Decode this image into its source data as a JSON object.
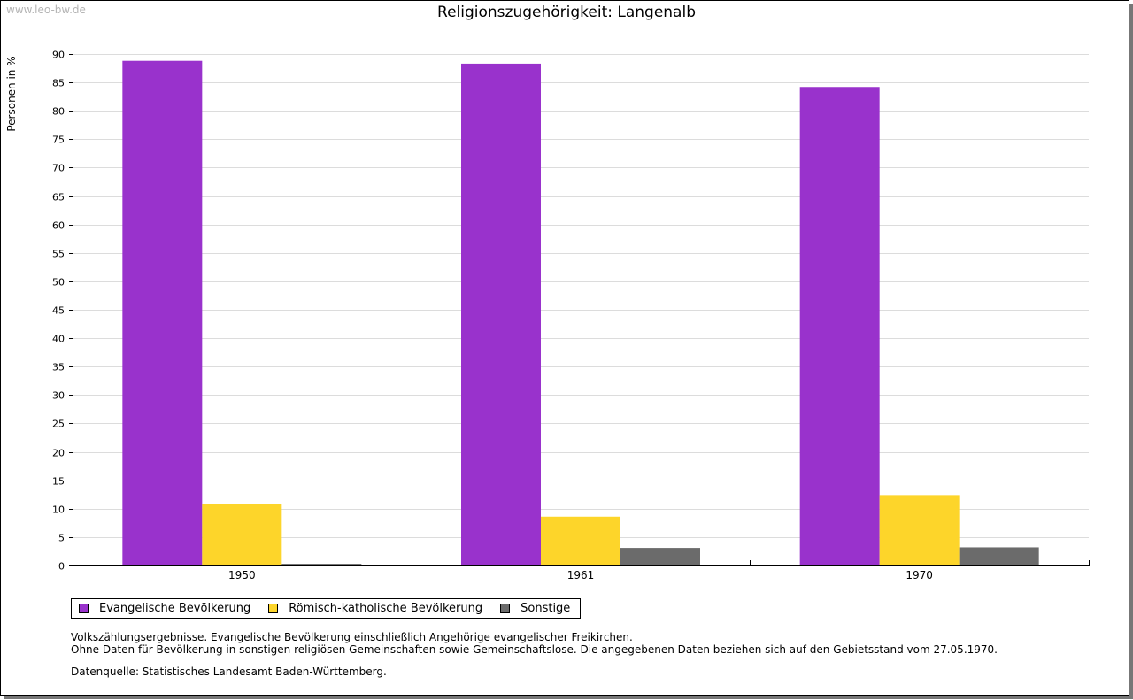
{
  "watermark": "www.leo-bw.de",
  "chart_data": {
    "type": "bar",
    "title": "Religionszugehörigkeit: Langenalb",
    "xlabel": "",
    "ylabel": "Personen in %",
    "ylim": [
      0,
      90
    ],
    "ytick_step": 5,
    "grid": true,
    "categories": [
      "1950",
      "1961",
      "1970"
    ],
    "series": [
      {
        "name": "Evangelische Bevölkerung",
        "color": "#9932cc",
        "values": [
          88.8,
          88.3,
          84.2
        ]
      },
      {
        "name": "Römisch-katholische Bevölkerung",
        "color": "#fdd52a",
        "values": [
          10.9,
          8.6,
          12.4
        ]
      },
      {
        "name": "Sonstige",
        "color": "#6b6b6b",
        "values": [
          0.3,
          3.1,
          3.2
        ]
      }
    ],
    "legend_position": "bottom-left"
  },
  "notes": {
    "line1": "Volkszählungsergebnisse. Evangelische Bevölkerung einschließlich Angehörige evangelischer Freikirchen.",
    "line2": "Ohne Daten für Bevölkerung in sonstigen religiösen Gemeinschaften sowie Gemeinschaftslose. Die angegebenen Daten beziehen sich auf den Gebietsstand vom 27.05.1970."
  },
  "source": "Datenquelle: Statistisches Landesamt Baden-Württemberg."
}
